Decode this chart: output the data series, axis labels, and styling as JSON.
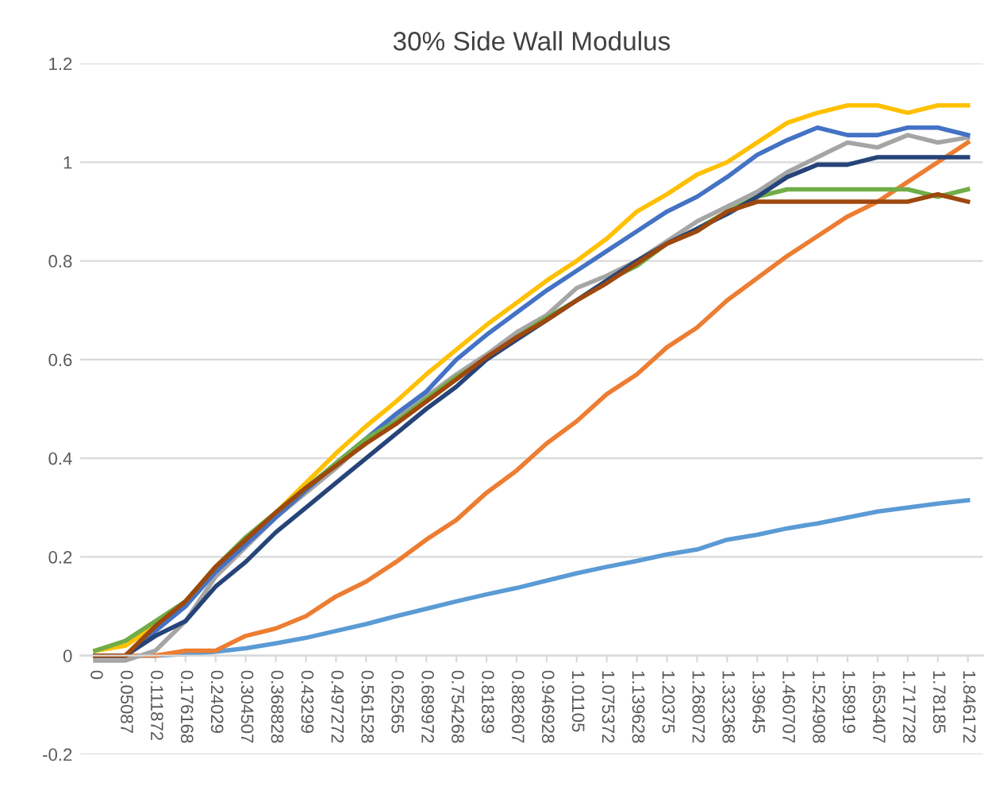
{
  "chart_data": {
    "type": "line",
    "title": "30% Side Wall Modulus",
    "categories": [
      "0",
      "0.05087",
      "0.111872",
      "0.176168",
      "0.24029",
      "0.304507",
      "0.368828",
      "0.43299",
      "0.497272",
      "0.561528",
      "0.62565",
      "0.689972",
      "0.754268",
      "0.81839",
      "0.882607",
      "0.946928",
      "1.01105",
      "1.075372",
      "1.139628",
      "1.20375",
      "1.268072",
      "1.332368",
      "1.39645",
      "1.460707",
      "1.524908",
      "1.58919",
      "1.653407",
      "1.717728",
      "1.78185",
      "1.846172"
    ],
    "ylim": [
      -0.2,
      1.2
    ],
    "yticks": [
      -0.2,
      0,
      0.2,
      0.4,
      0.6,
      0.8,
      1,
      1.2
    ],
    "grid": "y",
    "legend": false,
    "series": [
      {
        "color": "#5b9bd5",
        "values": [
          0,
          0,
          0,
          0.003,
          0.008,
          0.015,
          0.025,
          0.036,
          0.05,
          0.064,
          0.08,
          0.095,
          0.11,
          0.124,
          0.137,
          0.152,
          0.167,
          0.18,
          0.192,
          0.205,
          0.215,
          0.235,
          0.245,
          0.258,
          0.268,
          0.28,
          0.292,
          0.3,
          0.308,
          0.315
        ]
      },
      {
        "color": "#ed7d31",
        "values": [
          0,
          0,
          0,
          0.01,
          0.01,
          0.04,
          0.055,
          0.08,
          0.12,
          0.15,
          0.19,
          0.235,
          0.275,
          0.33,
          0.375,
          0.43,
          0.475,
          0.53,
          0.57,
          0.625,
          0.665,
          0.72,
          0.765,
          0.81,
          0.85,
          0.89,
          0.92,
          0.96,
          1.0,
          1.04
        ]
      },
      {
        "color": "#a5a5a5",
        "values": [
          -0.01,
          -0.01,
          0.01,
          0.07,
          0.16,
          0.22,
          0.28,
          0.33,
          0.38,
          0.435,
          0.48,
          0.525,
          0.57,
          0.61,
          0.655,
          0.69,
          0.745,
          0.77,
          0.8,
          0.84,
          0.88,
          0.91,
          0.94,
          0.98,
          1.01,
          1.04,
          1.03,
          1.055,
          1.04,
          1.05
        ]
      },
      {
        "color": "#ffc000",
        "values": [
          0.01,
          0.02,
          0.06,
          0.11,
          0.18,
          0.235,
          0.29,
          0.35,
          0.41,
          0.465,
          0.515,
          0.57,
          0.62,
          0.67,
          0.715,
          0.76,
          0.8,
          0.845,
          0.9,
          0.935,
          0.975,
          1.0,
          1.04,
          1.08,
          1.1,
          1.115,
          1.115,
          1.1,
          1.115,
          1.115
        ]
      },
      {
        "color": "#4472c4",
        "values": [
          0,
          0,
          0.05,
          0.1,
          0.17,
          0.225,
          0.28,
          0.335,
          0.39,
          0.44,
          0.49,
          0.535,
          0.6,
          0.65,
          0.695,
          0.74,
          0.78,
          0.82,
          0.86,
          0.9,
          0.93,
          0.97,
          1.015,
          1.045,
          1.07,
          1.055,
          1.055,
          1.07,
          1.07,
          1.055
        ]
      },
      {
        "color": "#70ad47",
        "values": [
          0.01,
          0.03,
          0.07,
          0.11,
          0.18,
          0.24,
          0.29,
          0.34,
          0.39,
          0.44,
          0.475,
          0.52,
          0.565,
          0.6,
          0.645,
          0.685,
          0.72,
          0.76,
          0.79,
          0.835,
          0.865,
          0.9,
          0.93,
          0.945,
          0.945,
          0.945,
          0.945,
          0.945,
          0.93,
          0.945
        ]
      },
      {
        "color": "#264478",
        "values": [
          0,
          0,
          0.04,
          0.07,
          0.14,
          0.19,
          0.25,
          0.3,
          0.35,
          0.4,
          0.45,
          0.5,
          0.545,
          0.6,
          0.64,
          0.68,
          0.72,
          0.76,
          0.8,
          0.835,
          0.865,
          0.895,
          0.93,
          0.97,
          0.995,
          0.995,
          1.01,
          1.01,
          1.01,
          1.01
        ]
      },
      {
        "color": "#9e480e",
        "values": [
          0,
          0,
          0.06,
          0.11,
          0.18,
          0.235,
          0.29,
          0.34,
          0.385,
          0.43,
          0.47,
          0.515,
          0.56,
          0.605,
          0.645,
          0.68,
          0.72,
          0.755,
          0.795,
          0.835,
          0.86,
          0.9,
          0.92,
          0.92,
          0.92,
          0.92,
          0.92,
          0.92,
          0.935,
          0.92
        ]
      }
    ]
  }
}
